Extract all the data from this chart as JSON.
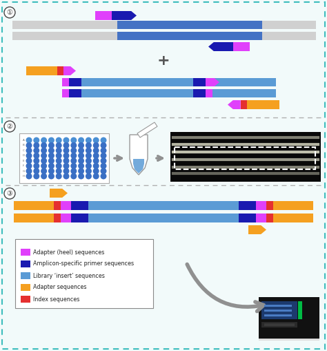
{
  "bg_color": "#f2fafa",
  "border_color": "#3dbdbd",
  "divider_color": "#b0b0b0",
  "gray_strand": "#d0d0d0",
  "blue_insert": "#4472c4",
  "light_blue": "#5b9bd5",
  "magenta": "#e040fb",
  "dark_blue": "#1a1ab0",
  "orange": "#f5a020",
  "red": "#e53030",
  "gray_arrow": "#909090",
  "legend_entries": [
    {
      "label": "Adapter (heel) sequences",
      "color": "#e040fb"
    },
    {
      "label": "Amplicon-specific primer sequences",
      "color": "#1a1ab0"
    },
    {
      "label": "Library ‘insert’ sequences",
      "color": "#5b9bd5"
    },
    {
      "label": "Adapter sequences",
      "color": "#f5a020"
    },
    {
      "label": "Index sequences",
      "color": "#e53030"
    }
  ]
}
